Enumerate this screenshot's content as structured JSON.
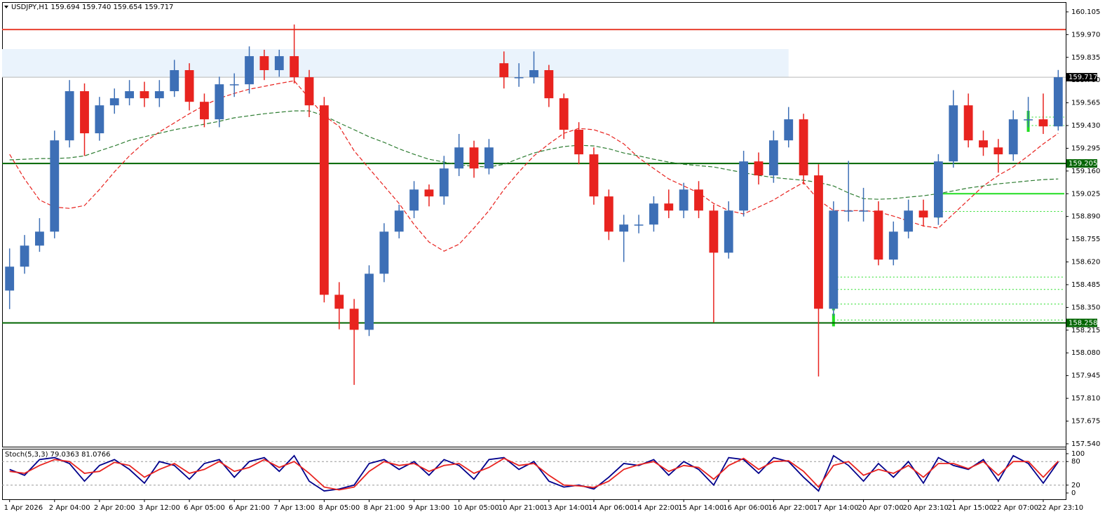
{
  "chart_data": [
    {
      "type": "candlestick",
      "title": "USDJPY,H1  159.694 159.740 159.654 159.717",
      "categories": [
        "1 Apr 2026",
        null,
        null,
        "2 Apr 04:00",
        null,
        null,
        "2 Apr 20:00",
        null,
        null,
        "3 Apr 12:00",
        null,
        null,
        "6 Apr 05:00",
        null,
        null,
        "6 Apr 21:00",
        null,
        null,
        "7 Apr 13:00",
        null,
        null,
        "8 Apr 05:00",
        null,
        null,
        "8 Apr 21:00",
        null,
        null,
        "9 Apr 13:00",
        null,
        null,
        "10 Apr 05:00",
        null,
        null,
        "10 Apr 21:00",
        null,
        null,
        "13 Apr 14:00",
        null,
        null,
        "14 Apr 06:00",
        null,
        null,
        "14 Apr 22:00",
        null,
        null,
        "15 Apr 14:00",
        null,
        null,
        "16 Apr 06:00",
        null,
        null,
        "16 Apr 22:00",
        null,
        null,
        "17 Apr 14:00",
        null,
        null,
        "20 Apr 07:00",
        null,
        null,
        "20 Apr 23:10",
        null,
        null,
        "21 Apr 15:00",
        null,
        null,
        "22 Apr 07:00",
        null,
        null,
        "22 Apr 23:10",
        null
      ],
      "open": [
        158.45,
        158.592,
        158.717,
        158.8,
        159.342,
        159.634,
        159.384,
        159.55,
        159.592,
        159.634,
        159.592,
        159.634,
        159.759,
        159.571,
        159.467,
        159.675,
        159.675,
        159.842,
        159.759,
        159.842,
        159.717,
        159.55,
        158.425,
        158.342,
        158.217,
        158.55,
        158.8,
        158.925,
        159.05,
        159.009,
        159.175,
        159.3,
        159.175,
        159.8,
        159.717,
        159.717,
        159.759,
        159.592,
        159.405,
        159.259,
        159.009,
        158.8,
        158.842,
        158.842,
        158.967,
        158.925,
        159.05,
        158.925,
        158.675,
        158.925,
        159.217,
        159.134,
        159.342,
        159.467,
        159.134,
        158.342,
        158.925,
        158.925,
        158.925,
        158.634,
        158.8,
        158.925,
        158.884,
        159.217,
        159.55,
        159.342,
        159.3,
        159.259,
        159.467,
        159.467,
        159.425
      ],
      "high": [
        158.7,
        158.78,
        158.88,
        159.4,
        159.7,
        159.68,
        159.6,
        159.65,
        159.7,
        159.69,
        159.7,
        159.82,
        159.8,
        159.62,
        159.72,
        159.74,
        159.9,
        159.88,
        159.88,
        160.03,
        159.76,
        159.6,
        158.5,
        158.4,
        158.6,
        158.85,
        158.96,
        159.1,
        159.08,
        159.25,
        159.38,
        159.34,
        159.35,
        159.87,
        159.8,
        159.87,
        159.79,
        159.62,
        159.45,
        159.3,
        159.05,
        158.9,
        158.9,
        159.01,
        159.05,
        159.09,
        159.1,
        158.96,
        158.98,
        159.28,
        159.27,
        159.4,
        159.54,
        159.5,
        159.2,
        158.98,
        159.22,
        159.06,
        158.98,
        158.86,
        158.99,
        158.99,
        159.26,
        159.64,
        159.62,
        159.4,
        159.35,
        159.52,
        159.6,
        159.62,
        159.76
      ],
      "low": [
        158.34,
        158.55,
        158.68,
        158.76,
        159.3,
        159.25,
        159.34,
        159.5,
        159.55,
        159.54,
        159.54,
        159.6,
        159.52,
        159.42,
        159.42,
        159.6,
        159.62,
        159.7,
        159.72,
        159.68,
        159.48,
        158.38,
        158.22,
        157.89,
        158.18,
        158.5,
        158.76,
        158.88,
        158.95,
        158.96,
        159.13,
        159.12,
        159.14,
        159.65,
        159.66,
        159.68,
        159.54,
        159.35,
        159.2,
        158.96,
        158.75,
        158.62,
        158.79,
        158.8,
        158.88,
        158.88,
        158.88,
        158.26,
        158.64,
        158.89,
        159.08,
        159.09,
        159.3,
        159.08,
        157.94,
        158.3,
        158.86,
        158.86,
        158.6,
        158.6,
        158.76,
        158.83,
        158.84,
        159.18,
        159.3,
        159.25,
        159.15,
        159.22,
        159.42,
        159.38,
        159.4
      ],
      "close": [
        158.592,
        158.717,
        158.8,
        159.342,
        159.634,
        159.384,
        159.55,
        159.592,
        159.634,
        159.592,
        159.634,
        159.759,
        159.571,
        159.467,
        159.675,
        159.675,
        159.842,
        159.759,
        159.842,
        159.717,
        159.55,
        158.425,
        158.342,
        158.217,
        158.55,
        158.8,
        158.925,
        159.05,
        159.009,
        159.175,
        159.3,
        159.175,
        159.3,
        159.717,
        159.717,
        159.759,
        159.592,
        159.405,
        159.259,
        159.009,
        158.8,
        158.842,
        158.842,
        158.967,
        158.925,
        159.05,
        158.925,
        158.675,
        158.925,
        159.217,
        159.134,
        159.342,
        159.467,
        159.134,
        158.342,
        158.925,
        158.925,
        158.925,
        158.634,
        158.8,
        158.925,
        158.884,
        159.217,
        159.55,
        159.342,
        159.3,
        159.259,
        159.467,
        159.467,
        159.425,
        159.717
      ],
      "up_color": "#3d6fb6",
      "down_color": "#e8231f",
      "lines": [
        {
          "color": "#e8231f",
          "style": "dashed",
          "values": [
            159.259,
            159.113,
            158.988,
            158.946,
            158.938,
            158.955,
            159.05,
            159.155,
            159.25,
            159.33,
            159.392,
            159.446,
            159.5,
            159.55,
            159.592,
            159.621,
            159.646,
            159.663,
            159.68,
            159.696,
            159.592,
            159.488,
            159.425,
            159.28,
            159.175,
            159.071,
            158.967,
            158.842,
            158.738,
            158.684,
            158.725,
            158.821,
            158.925,
            159.05,
            159.155,
            159.25,
            159.321,
            159.384,
            159.413,
            159.405,
            159.375,
            159.321,
            159.238,
            159.175,
            159.113,
            159.071,
            159.03,
            158.967,
            158.925,
            158.905,
            158.946,
            158.988,
            159.042,
            159.092,
            158.988,
            158.925,
            158.925,
            158.925,
            158.917,
            158.892,
            158.863,
            158.834,
            158.821,
            158.905,
            158.988,
            159.071,
            159.134,
            159.184,
            159.25,
            159.321,
            159.384
          ]
        },
        {
          "color": "#2e7d32",
          "style": "dashed",
          "values": [
            159.226,
            159.23,
            159.234,
            159.234,
            159.238,
            159.25,
            159.28,
            159.309,
            159.342,
            159.363,
            159.384,
            159.405,
            159.421,
            159.438,
            159.455,
            159.476,
            159.488,
            159.5,
            159.509,
            159.517,
            159.517,
            159.488,
            159.446,
            159.405,
            159.363,
            159.33,
            159.292,
            159.259,
            159.23,
            159.213,
            159.196,
            159.188,
            159.184,
            159.2,
            159.234,
            159.267,
            159.288,
            159.305,
            159.313,
            159.309,
            159.292,
            159.267,
            159.25,
            159.23,
            159.213,
            159.2,
            159.192,
            159.184,
            159.167,
            159.15,
            159.134,
            159.121,
            159.113,
            159.105,
            159.092,
            159.071,
            159.03,
            158.996,
            158.992,
            158.996,
            159.005,
            159.013,
            159.026,
            159.042,
            159.059,
            159.071,
            159.084,
            159.092,
            159.101,
            159.109,
            159.113
          ]
        }
      ],
      "zone": {
        "low": 159.717,
        "high": 159.884,
        "start": 0,
        "end": 52,
        "color": "#eaf3fc"
      },
      "hlines": [
        {
          "value": 160.0,
          "color": "#e8402f",
          "boxed": false
        },
        {
          "value": 159.205,
          "color": "#006400",
          "boxed": true
        },
        {
          "value": 158.258,
          "color": "#006400",
          "boxed": true
        },
        {
          "value": 159.717,
          "color": "#b8b8b8",
          "boxed": true,
          "box_color": "#000000"
        }
      ],
      "levels": [
        {
          "value": 158.53,
          "start": 55,
          "style": "dotted"
        },
        {
          "value": 158.457,
          "start": 55,
          "style": "dotted"
        },
        {
          "value": 158.37,
          "start": 55,
          "style": "dotted"
        },
        {
          "value": 158.275,
          "start": 55,
          "style": "dotted"
        },
        {
          "value": 159.025,
          "start": 62,
          "style": "solid"
        },
        {
          "value": 158.92,
          "start": 62,
          "style": "dotted"
        },
        {
          "value": 159.48,
          "start": 68,
          "style": "dotted"
        },
        {
          "value": 159.43,
          "start": 68,
          "style": "dotted"
        }
      ],
      "level_color": "#22dd22",
      "ylim": [
        157.523,
        160.163
      ],
      "yticks": [
        160.105,
        {
          "value": 159.97,
          "label": "159.970"
        },
        159.835,
        {
          "value": 159.7,
          "label": "159.700"
        },
        159.565,
        {
          "value": 159.43,
          "label": "159.430"
        },
        159.295,
        {
          "value": 159.16,
          "label": "159.160"
        },
        159.025,
        {
          "value": 158.89,
          "label": "158.890"
        },
        158.755,
        {
          "value": 158.62,
          "label": "158.620"
        },
        158.485,
        {
          "value": 158.35,
          "label": "158.350"
        },
        158.215,
        {
          "value": 158.08,
          "label": "158.080"
        },
        157.945,
        {
          "value": 157.81,
          "label": "157.810"
        },
        157.675,
        {
          "value": 157.54,
          "label": "157.540"
        }
      ]
    },
    {
      "type": "line",
      "title": "Stoch(5,3,3) 79.0363 81.0766",
      "series": [
        {
          "color": "#00008b",
          "values": [
            60,
            45,
            85,
            90,
            75,
            30,
            70,
            85,
            60,
            25,
            80,
            70,
            35,
            75,
            85,
            40,
            80,
            90,
            55,
            95,
            30,
            5,
            10,
            20,
            75,
            85,
            60,
            80,
            45,
            85,
            70,
            35,
            85,
            90,
            60,
            80,
            30,
            15,
            20,
            10,
            40,
            75,
            70,
            85,
            45,
            80,
            60,
            20,
            90,
            85,
            50,
            90,
            80,
            40,
            5,
            95,
            70,
            30,
            75,
            40,
            80,
            25,
            90,
            70,
            60,
            85,
            30,
            95,
            75,
            25,
            79.0363
          ]
        },
        {
          "color": "#e8231f",
          "values": [
            55,
            50,
            70,
            85,
            80,
            50,
            55,
            78,
            70,
            40,
            60,
            75,
            50,
            60,
            80,
            55,
            65,
            85,
            65,
            80,
            50,
            15,
            8,
            15,
            55,
            80,
            70,
            75,
            55,
            70,
            75,
            50,
            65,
            88,
            70,
            75,
            45,
            20,
            18,
            14,
            30,
            60,
            72,
            80,
            55,
            70,
            65,
            35,
            70,
            88,
            60,
            80,
            82,
            55,
            15,
            70,
            80,
            45,
            60,
            50,
            70,
            40,
            75,
            75,
            62,
            80,
            45,
            80,
            80,
            40,
            81.0766
          ]
        }
      ],
      "levels": [
        80,
        20
      ],
      "ylim": [
        -16,
        110.7
      ],
      "yticks": [
        100,
        80,
        20,
        0
      ]
    }
  ]
}
